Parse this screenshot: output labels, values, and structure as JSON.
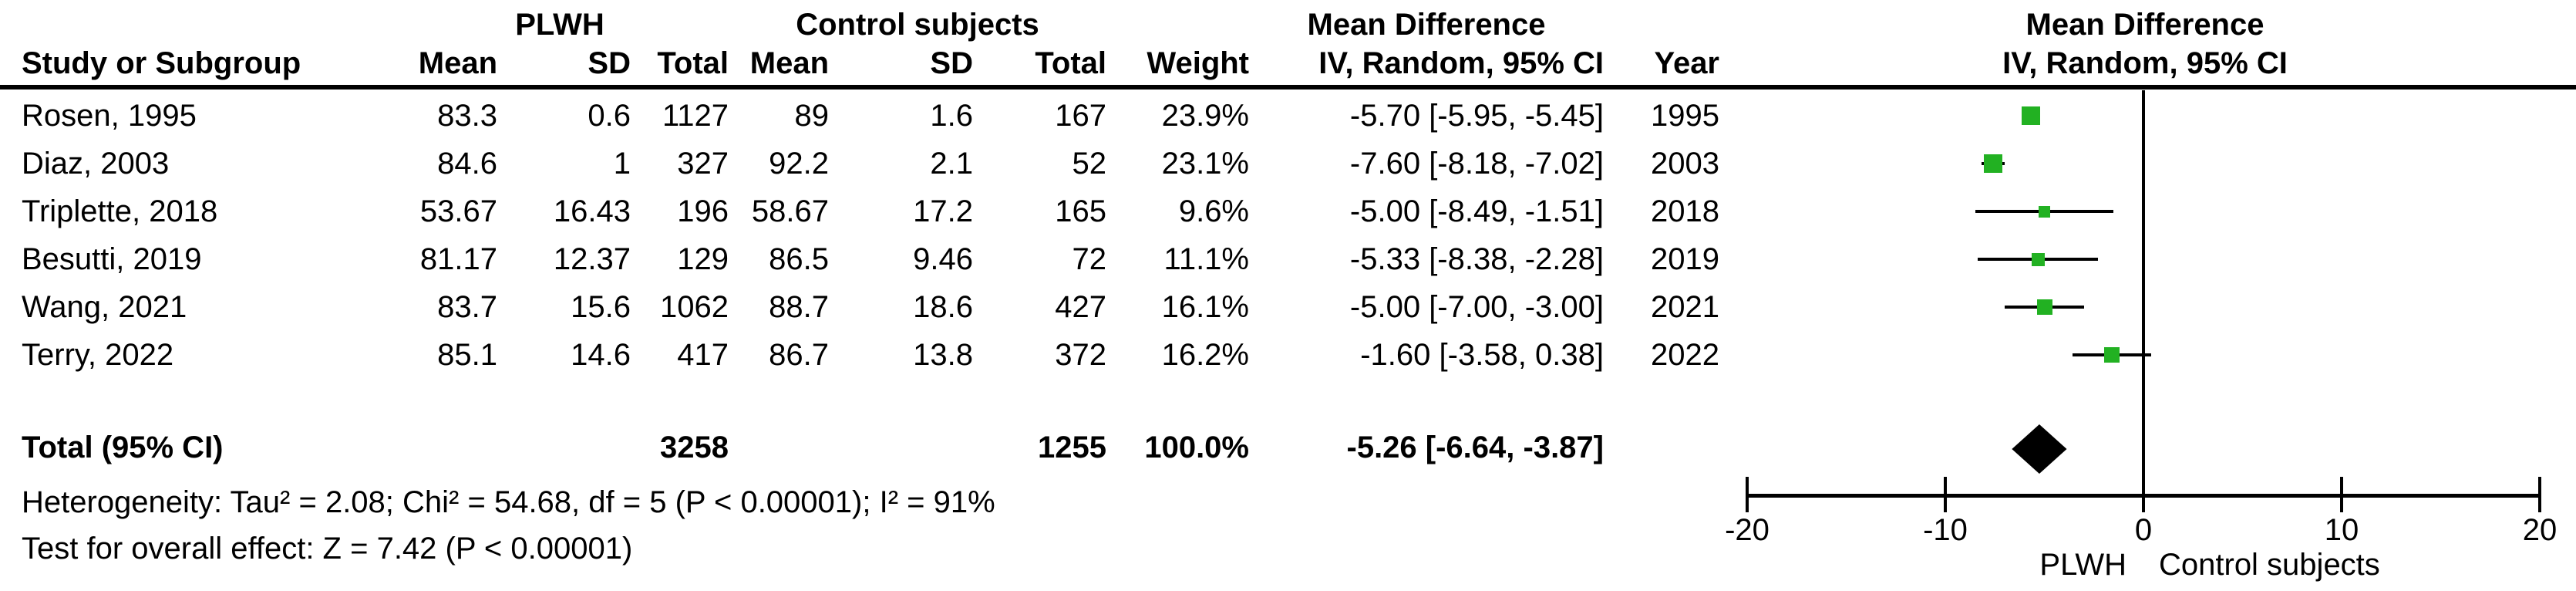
{
  "header": {
    "group_plwh": "PLWH",
    "group_control": "Control subjects",
    "group_md_table": "Mean Difference",
    "group_md_plot": "Mean Difference",
    "col_study": "Study or Subgroup",
    "col_mean_plwh": "Mean",
    "col_sd_plwh": "SD",
    "col_total_plwh": "Total",
    "col_mean_control": "Mean",
    "col_sd_control": "SD",
    "col_total_control": "Total",
    "col_weight": "Weight",
    "col_ci": "IV, Random, 95% CI",
    "col_year": "Year",
    "col_ci_plot": "IV, Random, 95% CI"
  },
  "colors": {
    "square": "#22b122",
    "diamond": "#000000",
    "line": "#000000"
  },
  "chart_data": {
    "type": "scatter",
    "variant": "forest-plot",
    "effect_measure": "Mean Difference",
    "model": "IV, Random, 95% CI",
    "xlim": [
      -20,
      20
    ],
    "x_ticks": [
      -20,
      -10,
      0,
      10,
      20
    ],
    "x_axis_left_label": "PLWH",
    "x_axis_right_label": "Control subjects",
    "grid": false,
    "studies": [
      {
        "cells": [
          "Rosen, 1995",
          "83.3",
          "0.6",
          "1127",
          "89",
          "1.6",
          "167",
          "23.9%",
          "-5.70 [-5.95, -5.45]",
          "1995"
        ],
        "md": -5.7,
        "lo": -5.95,
        "hi": -5.45,
        "weight": 23.9
      },
      {
        "cells": [
          "Diaz, 2003",
          "84.6",
          "1",
          "327",
          "92.2",
          "2.1",
          "52",
          "23.1%",
          "-7.60 [-8.18, -7.02]",
          "2003"
        ],
        "md": -7.6,
        "lo": -8.18,
        "hi": -7.02,
        "weight": 23.1
      },
      {
        "cells": [
          "Triplette, 2018",
          "53.67",
          "16.43",
          "196",
          "58.67",
          "17.2",
          "165",
          "9.6%",
          "-5.00 [-8.49, -1.51]",
          "2018"
        ],
        "md": -5.0,
        "lo": -8.49,
        "hi": -1.51,
        "weight": 9.6
      },
      {
        "cells": [
          "Besutti, 2019",
          "81.17",
          "12.37",
          "129",
          "86.5",
          "9.46",
          "72",
          "11.1%",
          "-5.33 [-8.38, -2.28]",
          "2019"
        ],
        "md": -5.33,
        "lo": -8.38,
        "hi": -2.28,
        "weight": 11.1
      },
      {
        "cells": [
          "Wang, 2021",
          "83.7",
          "15.6",
          "1062",
          "88.7",
          "18.6",
          "427",
          "16.1%",
          "-5.00 [-7.00, -3.00]",
          "2021"
        ],
        "md": -5.0,
        "lo": -7.0,
        "hi": -3.0,
        "weight": 16.1
      },
      {
        "cells": [
          "Terry, 2022",
          "85.1",
          "14.6",
          "417",
          "86.7",
          "13.8",
          "372",
          "16.2%",
          "-1.60 [-3.58, 0.38]",
          "2022"
        ],
        "md": -1.6,
        "lo": -3.58,
        "hi": 0.38,
        "weight": 16.2
      }
    ],
    "total": {
      "label": "Total (95% CI)",
      "plwh_total": "3258",
      "control_total": "1255",
      "weight": "100.0%",
      "ci_text": "-5.26 [-6.64, -3.87]",
      "md": -5.26,
      "lo": -6.64,
      "hi": -3.87
    },
    "heterogeneity": "Heterogeneity: Tau² = 2.08; Chi² = 54.68, df = 5 (P < 0.00001); I² = 91%",
    "overall_effect": "Test for overall effect: Z = 7.42 (P < 0.00001)"
  }
}
